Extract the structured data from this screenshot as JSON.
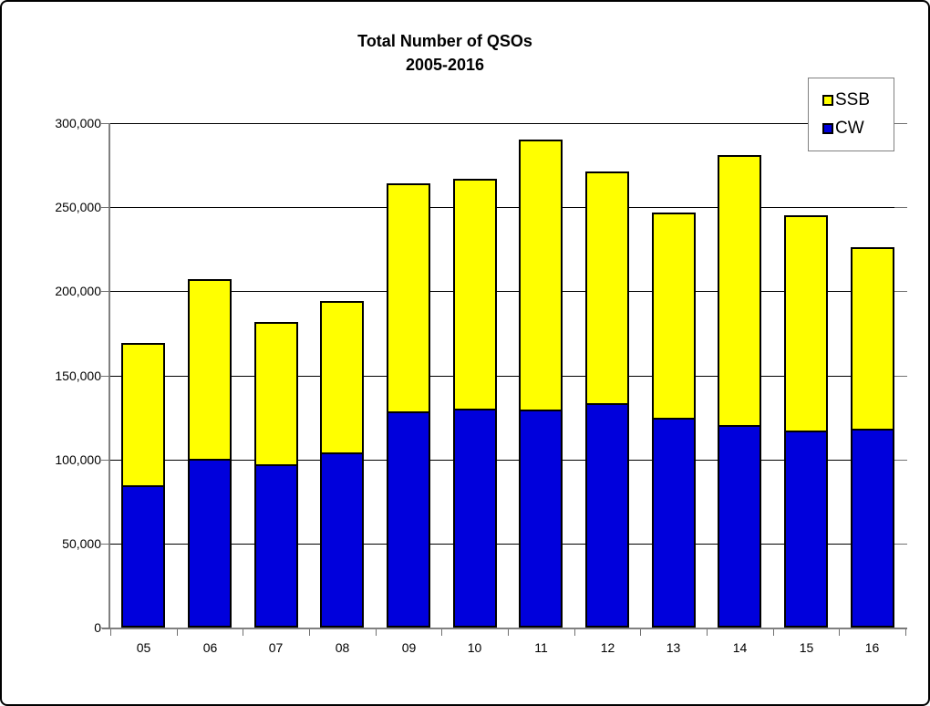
{
  "chart_data": {
    "type": "bar",
    "stacked": true,
    "title": "Total Number of QSOs 2005-2016",
    "title_line1": "Total Number of QSOs",
    "title_line2": "2005-2016",
    "categories": [
      "05",
      "06",
      "07",
      "08",
      "09",
      "10",
      "11",
      "12",
      "13",
      "14",
      "15",
      "16"
    ],
    "series": [
      {
        "name": "CW",
        "color": "#0000DC",
        "values": [
          82000,
          98000,
          95000,
          102000,
          126000,
          128000,
          127000,
          131000,
          123000,
          118000,
          115000,
          116000
        ]
      },
      {
        "name": "SSB",
        "color": "#FFFF00",
        "values": [
          87000,
          109000,
          87000,
          92000,
          138000,
          139000,
          163000,
          140000,
          124000,
          163000,
          130000,
          110000
        ]
      }
    ],
    "totals": [
      169000,
      207000,
      182000,
      194000,
      264000,
      267000,
      290000,
      271000,
      247000,
      281000,
      245000,
      226000
    ],
    "xlabel": "",
    "ylabel": "",
    "ylim": [
      0,
      300000
    ],
    "ytick_interval": 50000,
    "ytick_labels": [
      "0",
      "50,000",
      "100,000",
      "150,000",
      "200,000",
      "250,000",
      "300,000"
    ],
    "grid": true,
    "legend": {
      "position": "top-right",
      "entries": [
        {
          "label": "SSB",
          "color": "#FFFF00"
        },
        {
          "label": "CW",
          "color": "#0000DC"
        }
      ]
    }
  }
}
